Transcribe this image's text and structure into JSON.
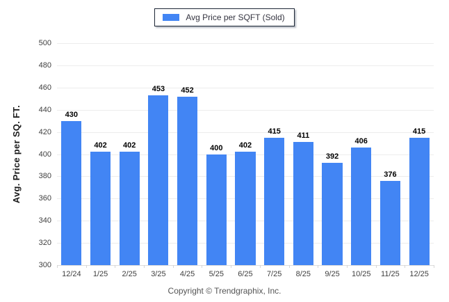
{
  "legend": {
    "label": "Avg Price per SQFT (Sold)",
    "swatch_color": "#4285f4"
  },
  "chart_data": {
    "type": "bar",
    "title": "",
    "categories": [
      "12/24",
      "1/25",
      "2/25",
      "3/25",
      "4/25",
      "5/25",
      "6/25",
      "7/25",
      "8/25",
      "9/25",
      "10/25",
      "11/25",
      "12/25"
    ],
    "values": [
      430,
      402,
      402,
      453,
      452,
      400,
      402,
      415,
      411,
      392,
      406,
      376,
      415
    ],
    "series_name": "Avg Price per SQFT (Sold)",
    "xlabel": "",
    "ylabel": "Avg. Price per SQ. FT.",
    "ylim": [
      300,
      500
    ],
    "yticks": [
      500,
      480,
      460,
      440,
      420,
      400,
      380,
      360,
      340,
      320,
      300
    ],
    "grid": true,
    "legend_position": "top-center",
    "bar_color": "#4285f4",
    "value_labels": true
  },
  "footer": {
    "copyright": "Copyright © Trendgraphix, Inc."
  }
}
